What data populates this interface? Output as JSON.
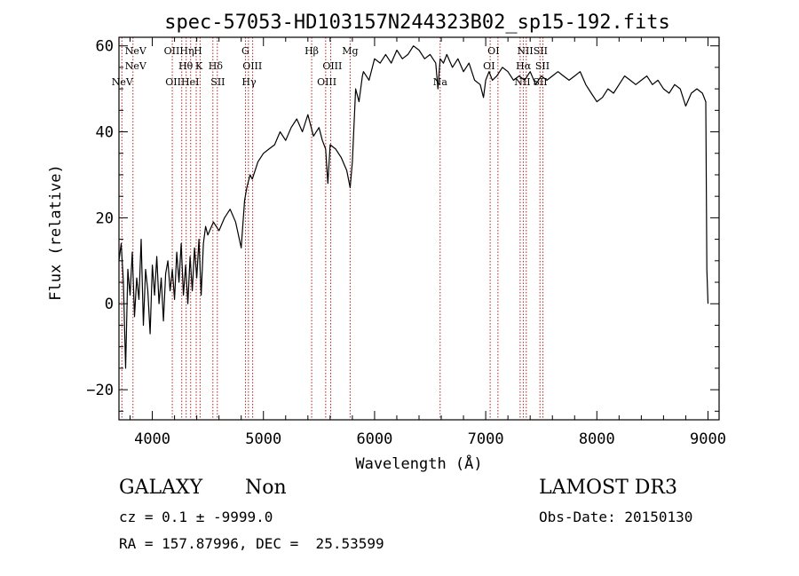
{
  "chart_data": {
    "type": "line",
    "title": "spec-57053-HD103157N244323B02_sp15-192.fits",
    "xlabel": "Wavelength (Å)",
    "ylabel": "Flux (relative)",
    "xlim": [
      3700,
      9100
    ],
    "ylim": [
      -27,
      62
    ],
    "xticks": [
      4000,
      5000,
      6000,
      7000,
      8000,
      9000
    ],
    "yticks": [
      -20,
      0,
      20,
      40,
      60
    ],
    "grid": false,
    "series": [
      {
        "x": [
          3700,
          3720,
          3740,
          3760,
          3780,
          3800,
          3820,
          3840,
          3860,
          3880,
          3900,
          3920,
          3940,
          3960,
          3980,
          4000,
          4020,
          4040,
          4060,
          4080,
          4100,
          4120,
          4140,
          4160,
          4180,
          4200,
          4220,
          4240,
          4260,
          4280,
          4300,
          4320,
          4340,
          4360,
          4380,
          4400,
          4420,
          4440,
          4460,
          4480,
          4500,
          4550,
          4600,
          4650,
          4700,
          4750,
          4800,
          4830,
          4850,
          4880,
          4900,
          4950,
          5000,
          5050,
          5100,
          5150,
          5200,
          5250,
          5300,
          5350,
          5400,
          5450,
          5500,
          5530,
          5560,
          5580,
          5600,
          5650,
          5700,
          5750,
          5780,
          5800,
          5830,
          5860,
          5890,
          5900,
          5950,
          6000,
          6050,
          6100,
          6150,
          6200,
          6250,
          6300,
          6350,
          6400,
          6450,
          6500,
          6550,
          6570,
          6590,
          6620,
          6650,
          6700,
          6750,
          6800,
          6850,
          6900,
          6950,
          6980,
          7000,
          7030,
          7060,
          7100,
          7150,
          7200,
          7250,
          7300,
          7350,
          7400,
          7450,
          7500,
          7550,
          7600,
          7650,
          7700,
          7750,
          7800,
          7850,
          7900,
          7950,
          8000,
          8050,
          8100,
          8150,
          8200,
          8250,
          8300,
          8350,
          8400,
          8450,
          8500,
          8550,
          8600,
          8650,
          8700,
          8750,
          8800,
          8850,
          8900,
          8950,
          8980,
          8990,
          9000
        ],
        "y": [
          10,
          14,
          5,
          -15,
          8,
          2,
          12,
          -3,
          6,
          1,
          15,
          -5,
          8,
          3,
          -7,
          9,
          2,
          11,
          0,
          6,
          -4,
          7,
          10,
          3,
          8,
          1,
          12,
          5,
          14,
          2,
          9,
          0,
          11,
          3,
          13,
          6,
          15,
          2,
          14,
          18,
          16,
          19,
          17,
          20,
          22,
          19,
          13,
          24,
          27,
          30,
          29,
          33,
          35,
          36,
          37,
          40,
          38,
          41,
          43,
          40,
          44,
          39,
          41,
          38,
          36,
          28,
          37,
          36,
          34,
          31,
          27,
          33,
          50,
          47,
          53,
          54,
          52,
          57,
          56,
          58,
          56,
          59,
          57,
          58,
          60,
          59,
          57,
          58,
          56,
          50,
          57,
          56,
          58,
          55,
          57,
          54,
          56,
          52,
          51,
          48,
          52,
          54,
          52,
          53,
          55,
          54,
          52,
          53,
          52,
          54,
          51,
          53,
          52,
          53,
          54,
          53,
          52,
          53,
          54,
          51,
          49,
          47,
          48,
          50,
          49,
          51,
          53,
          52,
          51,
          52,
          53,
          51,
          52,
          50,
          49,
          51,
          50,
          46,
          49,
          50,
          49,
          47,
          8,
          0
        ]
      }
    ],
    "lines": [
      {
        "name": "NeV",
        "x": 3726
      },
      {
        "name": "NeV",
        "x": 3826
      },
      {
        "name": "OII",
        "x": 4180
      },
      {
        "name": "Hη",
        "x": 4265
      },
      {
        "name": "Hθ",
        "x": 4305
      },
      {
        "name": "HeI",
        "x": 4345
      },
      {
        "name": "H",
        "x": 4395
      },
      {
        "name": "K",
        "x": 4430
      },
      {
        "name": "Hδ",
        "x": 4545
      },
      {
        "name": "SII",
        "x": 4585
      },
      {
        "name": "G",
        "x": 4838
      },
      {
        "name": "Hγ",
        "x": 4865
      },
      {
        "name": "OIII",
        "x": 4903
      },
      {
        "name": "Hβ",
        "x": 5434
      },
      {
        "name": "OIII",
        "x": 5560
      },
      {
        "name": "OIII",
        "x": 5605
      },
      {
        "name": "Mg",
        "x": 5780
      },
      {
        "name": "Na",
        "x": 6590
      },
      {
        "name": "OI",
        "x": 7040
      },
      {
        "name": "OI",
        "x": 7110
      },
      {
        "name": "NII",
        "x": 7310
      },
      {
        "name": "Hα",
        "x": 7338
      },
      {
        "name": "NII",
        "x": 7365
      },
      {
        "name": "SII",
        "x": 7488
      },
      {
        "name": "SII",
        "x": 7515
      }
    ],
    "line_label_rows": [
      [
        {
          "text": "NeV",
          "x": 3850
        },
        {
          "text": "OIIHη",
          "x": 4240
        },
        {
          "text": "H",
          "x": 4410
        },
        {
          "text": "G",
          "x": 4838
        },
        {
          "text": "Hβ",
          "x": 5434
        },
        {
          "text": "Mg",
          "x": 5780
        },
        {
          "text": "OI",
          "x": 7070
        },
        {
          "text": "NIISII",
          "x": 7420
        }
      ],
      [
        {
          "text": "NeV",
          "x": 3850
        },
        {
          "text": "Hθ",
          "x": 4300
        },
        {
          "text": "K",
          "x": 4420
        },
        {
          "text": "Hδ",
          "x": 4570
        },
        {
          "text": "OIII",
          "x": 4900
        },
        {
          "text": "OIII",
          "x": 5620
        },
        {
          "text": "OI",
          "x": 7030
        },
        {
          "text": "Hα",
          "x": 7340
        },
        {
          "text": "SII",
          "x": 7510
        }
      ],
      [
        {
          "text": "NeV",
          "x": 3730
        },
        {
          "text": "OIIHeI",
          "x": 4270
        },
        {
          "text": "SII",
          "x": 4590
        },
        {
          "text": "Hγ",
          "x": 4870
        },
        {
          "text": "OIII",
          "x": 5570
        },
        {
          "text": "Na",
          "x": 6590
        },
        {
          "text": "NII",
          "x": 7330
        },
        {
          "text": "SII",
          "x": 7490
        }
      ]
    ]
  },
  "info": {
    "classification": "GALAXY",
    "subclass": "Non",
    "survey": "LAMOST DR3",
    "cz_line": "cz = 0.1 ± -9999.0",
    "obs_date": "Obs-Date: 20150130",
    "coords": "RA = 157.87996, DEC =  25.53599"
  },
  "colors": {
    "spectrum": "#000000",
    "lines": "#b22222",
    "axes": "#000000"
  }
}
